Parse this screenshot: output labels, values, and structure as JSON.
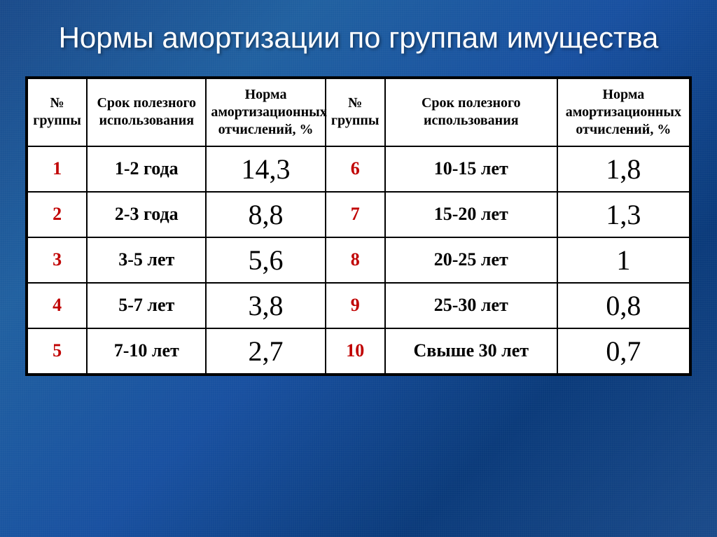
{
  "title": "Нормы амортизации по группам имущества",
  "columns": {
    "group_left": "№ группы",
    "period_left": "Срок полезного использования",
    "rate_left": "Норма амортизационных отчислений, %",
    "group_right": "№ группы",
    "period_right": "Срок полезного использования",
    "rate_right": "Норма амортизационных отчислений, %"
  },
  "rows": [
    {
      "l_num": "1",
      "l_period": "1-2 года",
      "l_rate": "14,3",
      "r_num": "6",
      "r_period": "10-15 лет",
      "r_rate": "1,8"
    },
    {
      "l_num": "2",
      "l_period": "2-3 года",
      "l_rate": "8,8",
      "r_num": "7",
      "r_period": "15-20 лет",
      "r_rate": "1,3"
    },
    {
      "l_num": "3",
      "l_period": "3-5 лет",
      "l_rate": "5,6",
      "r_num": "8",
      "r_period": "20-25 лет",
      "r_rate": "1"
    },
    {
      "l_num": "4",
      "l_period": "5-7 лет",
      "l_rate": "3,8",
      "r_num": "9",
      "r_period": "25-30 лет",
      "r_rate": "0,8"
    },
    {
      "l_num": "5",
      "l_period": "7-10 лет",
      "l_rate": "2,7",
      "r_num": "10",
      "r_period": "Свыше 30 лет",
      "r_rate": "0,7"
    }
  ],
  "style": {
    "background_gradient": [
      "#1a4a8a",
      "#2060a0",
      "#1850a0",
      "#0a3a7a",
      "#1a4a8a"
    ],
    "title_color": "#ffffff",
    "title_fontsize": 42,
    "cell_bg": "#ffffff",
    "border_color": "#000000",
    "group_number_color": "#c00000",
    "text_color": "#000000",
    "header_fontsize": 20,
    "period_fontsize": 26,
    "rate_fontsize": 40,
    "group_fontsize": 26
  }
}
